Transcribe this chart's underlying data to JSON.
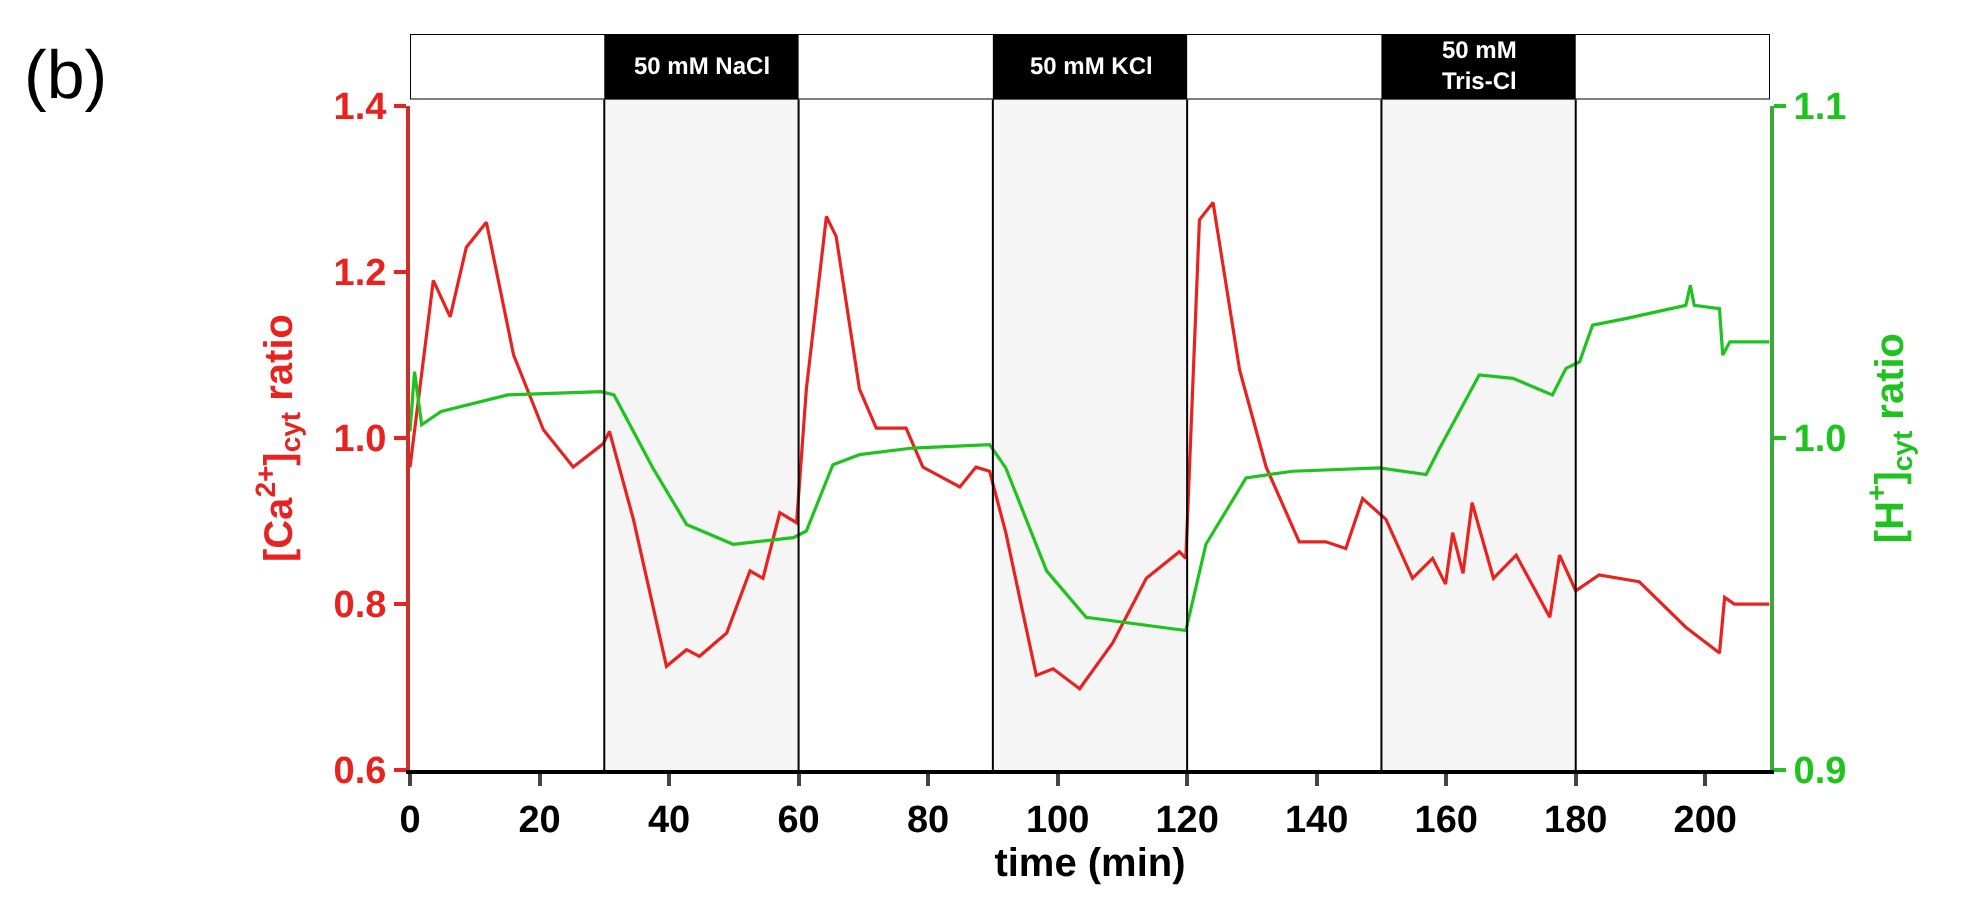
{
  "chart_data": {
    "type": "line",
    "xlabel": "time (min)",
    "ylabel": "[Ca$^{2+}$]$_{cyt}$ ratio",
    "y2label": "[H$^{+}$]$_{cyt}$ ratio",
    "annotations": [
      "(b)"
    ],
    "xlim": [
      0,
      210
    ],
    "xticks": [
      0,
      20,
      40,
      60,
      80,
      100,
      120,
      140,
      160,
      180,
      200
    ],
    "ylim": [
      0.6,
      1.4
    ],
    "yticks": [
      0.6,
      0.8,
      {
        "value": 1.0,
        "label": "1.0"
      },
      1.2,
      1.4
    ],
    "y2lim": [
      0.9,
      1.1
    ],
    "y2ticks": [
      0.9,
      {
        "value": 1.0,
        "label": "1.0"
      },
      1.1
    ],
    "grid": false,
    "series": [
      {
        "color": "#e8231f",
        "x": [
          0,
          3.6,
          6.2,
          8.7,
          11.8,
          16,
          20.6,
          25.2,
          29.8,
          30.8,
          34.5,
          39.6,
          42.7,
          44.7,
          48.9,
          52.5,
          54.5,
          57.1,
          59.7,
          61.2,
          64.3,
          65.8,
          69.4,
          72,
          76.6,
          79.2,
          84.9,
          87.4,
          89.5,
          92,
          96.7,
          99.3,
          103.4,
          108.5,
          113.7,
          118.8,
          119.8,
          121.9,
          124,
          128.1,
          132.2,
          137.3,
          141.4,
          144.5,
          147.1,
          150.7,
          154.8,
          157.9,
          159.9,
          161,
          162.6,
          164,
          167.3,
          170.8,
          176,
          177.5,
          180,
          183.6,
          189.8,
          197,
          202.2,
          203,
          204.5,
          209.9
        ],
        "values": [
          0.965,
          1.19,
          1.146,
          1.23,
          1.26,
          1.1,
          1.01,
          0.965,
          0.993,
          1.008,
          0.902,
          0.725,
          0.745,
          0.737,
          0.765,
          0.84,
          0.831,
          0.91,
          0.898,
          1.059,
          1.267,
          1.243,
          1.059,
          1.012,
          1.012,
          0.965,
          0.941,
          0.965,
          0.96,
          0.886,
          0.714,
          0.722,
          0.698,
          0.753,
          0.831,
          0.863,
          0.855,
          1.263,
          1.284,
          1.082,
          0.965,
          0.875,
          0.875,
          0.867,
          0.927,
          0.902,
          0.831,
          0.855,
          0.824,
          0.886,
          0.837,
          0.922,
          0.831,
          0.859,
          0.784,
          0.859,
          0.816,
          0.835,
          0.827,
          0.772,
          0.741,
          0.808,
          0.8,
          0.8
        ]
      },
      {
        "color": "#1ec31e",
        "axis": "y2",
        "x": [
          0,
          0.7,
          1.8,
          4.8,
          15.1,
          29.5,
          31.5,
          37.5,
          42.7,
          49.9,
          59.2,
          61.2,
          65.3,
          69.4,
          77.6,
          89.5,
          92,
          98.3,
          104.4,
          119.8,
          122.9,
          129.1,
          136.3,
          149.7,
          156.9,
          159,
          165.1,
          170.3,
          176.4,
          178.5,
          180.6,
          182.6,
          187.7,
          197,
          197.7,
          198.3,
          202.2,
          202.7,
          203.8,
          209.9
        ],
        "values": [
          1.002,
          1.02,
          1.004,
          1.008,
          1.013,
          1.014,
          1.013,
          0.991,
          0.974,
          0.968,
          0.97,
          0.972,
          0.992,
          0.995,
          0.997,
          0.998,
          0.991,
          0.96,
          0.946,
          0.942,
          0.968,
          0.988,
          0.99,
          0.991,
          0.989,
          0.997,
          1.019,
          1.018,
          1.013,
          1.021,
          1.023,
          1.034,
          1.036,
          1.04,
          1.046,
          1.04,
          1.039,
          1.025,
          1.029,
          1.029
        ]
      }
    ],
    "ref_lines": [
      {
        "axis": "x",
        "value": 30,
        "color": "#000000"
      },
      {
        "axis": "x",
        "value": 60,
        "color": "#000000"
      },
      {
        "axis": "x",
        "value": 90,
        "color": "#000000"
      },
      {
        "axis": "x",
        "value": 120,
        "color": "#000000"
      },
      {
        "axis": "x",
        "value": 150,
        "color": "#000000"
      },
      {
        "axis": "x",
        "value": 180,
        "color": "#000000"
      }
    ],
    "bands": [
      {
        "axis": "x",
        "from": 30,
        "to": 60,
        "label": "50 mM NaCl",
        "color": "#000000"
      },
      {
        "axis": "x",
        "from": 90,
        "to": 120,
        "label": "50 mM KCl",
        "color": "#000000"
      },
      {
        "axis": "x",
        "from": 150,
        "to": 180,
        "label": "50 mM\nTris-Cl",
        "color": "#000000"
      }
    ]
  }
}
